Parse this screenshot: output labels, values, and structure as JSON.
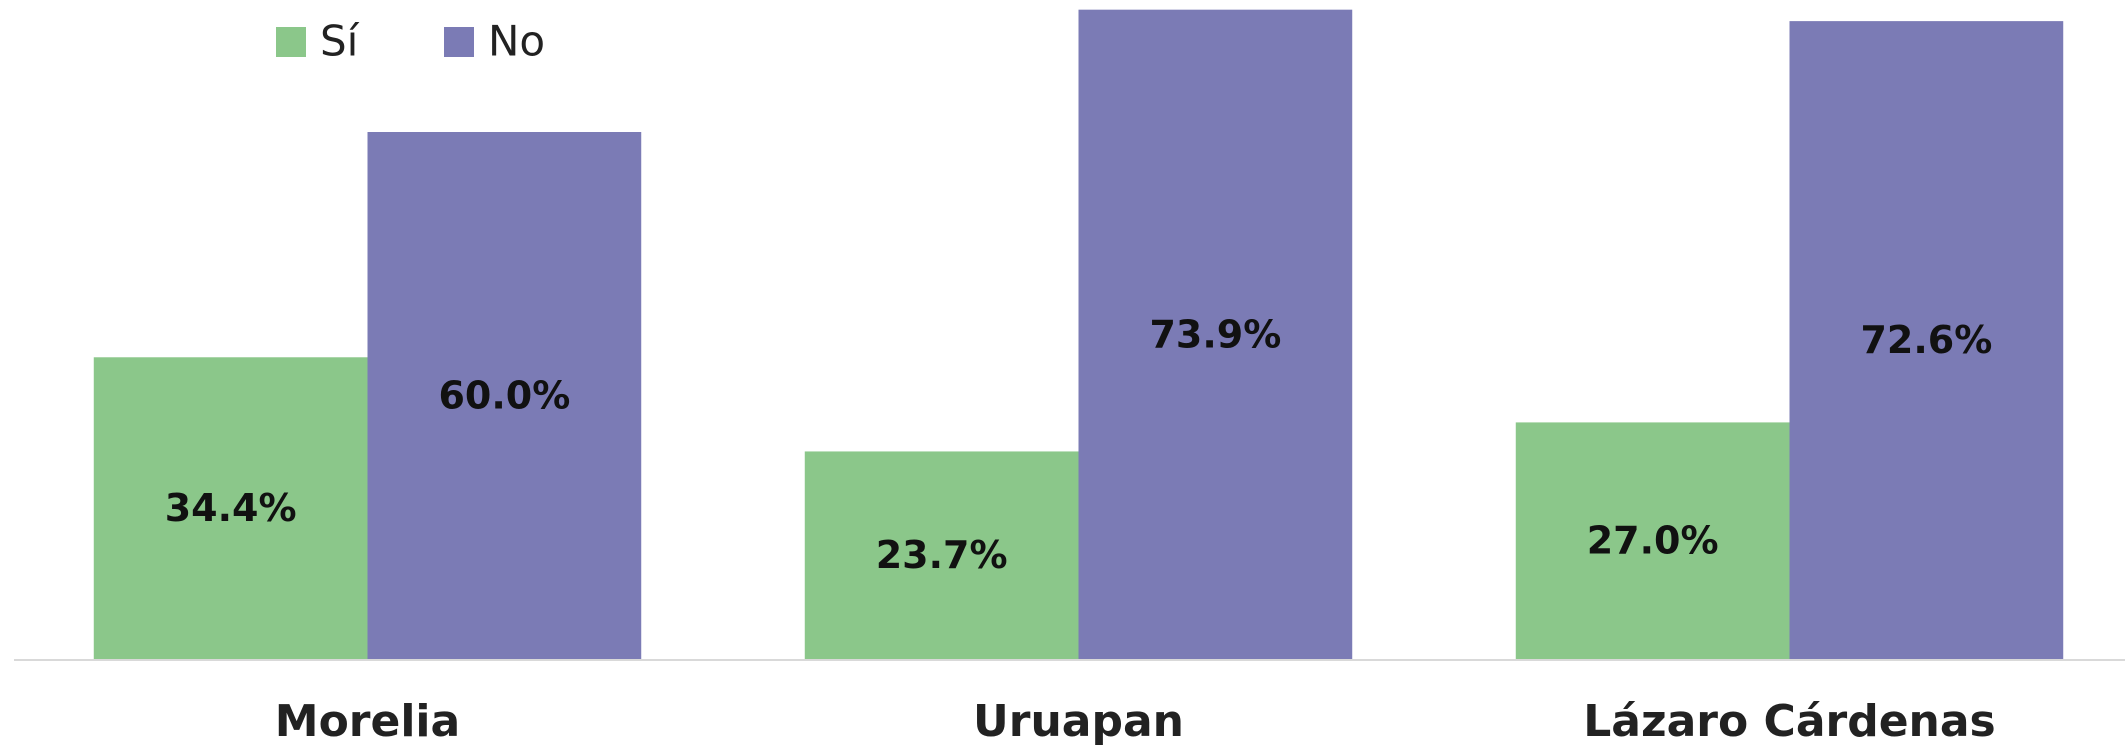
{
  "chart_data": {
    "type": "bar",
    "categories": [
      "Morelia",
      "Uruapan",
      "Lázaro Cárdenas"
    ],
    "series": [
      {
        "name": "Sí",
        "color": "#8bc78a",
        "values": [
          34.4,
          23.7,
          27.0
        ],
        "value_labels": [
          "34.4%",
          "23.7%",
          "27.0%"
        ]
      },
      {
        "name": "No",
        "color": "#7b7bb5",
        "values": [
          60.0,
          73.9,
          72.6
        ],
        "value_labels": [
          "60.0%",
          "73.9%",
          "72.6%"
        ]
      }
    ],
    "ylim": [
      0,
      75
    ],
    "legend": "top-left",
    "grid": false
  }
}
